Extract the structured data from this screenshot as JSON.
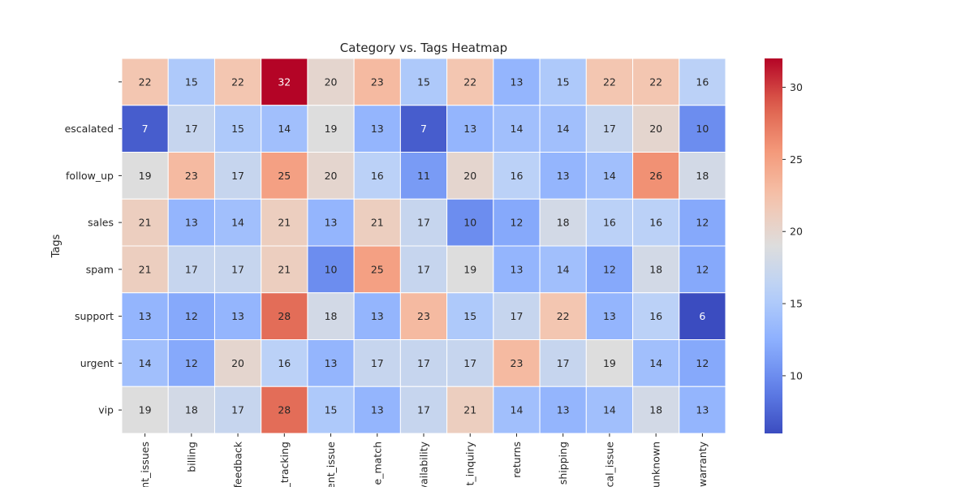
{
  "chart_data": {
    "type": "heatmap",
    "title": "Category vs. Tags Heatmap",
    "xlabel": "",
    "ylabel": "Tags",
    "x_categories": [
      "nt_issues",
      "billing",
      "feedback",
      "_tracking",
      "ent_issue",
      "e_match",
      "vailability",
      "t_inquiry",
      "returns",
      "shipping",
      "cal_issue",
      "unknown",
      "warranty"
    ],
    "y_categories": [
      "",
      "escalated",
      "follow_up",
      "sales",
      "spam",
      "support",
      "urgent",
      "vip"
    ],
    "values": [
      [
        22,
        15,
        22,
        32,
        20,
        23,
        15,
        22,
        13,
        15,
        22,
        22,
        16
      ],
      [
        7,
        17,
        15,
        14,
        19,
        13,
        7,
        13,
        14,
        14,
        17,
        20,
        10
      ],
      [
        19,
        23,
        17,
        25,
        20,
        16,
        11,
        20,
        16,
        13,
        14,
        26,
        18
      ],
      [
        21,
        13,
        14,
        21,
        13,
        21,
        17,
        10,
        12,
        18,
        16,
        16,
        12
      ],
      [
        21,
        17,
        17,
        21,
        10,
        25,
        17,
        19,
        13,
        14,
        12,
        18,
        12
      ],
      [
        13,
        12,
        13,
        28,
        18,
        13,
        23,
        15,
        17,
        22,
        13,
        16,
        6
      ],
      [
        14,
        12,
        20,
        16,
        13,
        17,
        17,
        17,
        23,
        17,
        19,
        14,
        12
      ],
      [
        19,
        18,
        17,
        28,
        15,
        13,
        17,
        21,
        14,
        13,
        14,
        18,
        13
      ]
    ],
    "colormap": "coolwarm",
    "colorbar": {
      "range": [
        6,
        32
      ],
      "ticks": [
        10,
        15,
        20,
        25,
        30
      ]
    },
    "annotations": true,
    "grid": false,
    "legend": "colorbar-right"
  }
}
